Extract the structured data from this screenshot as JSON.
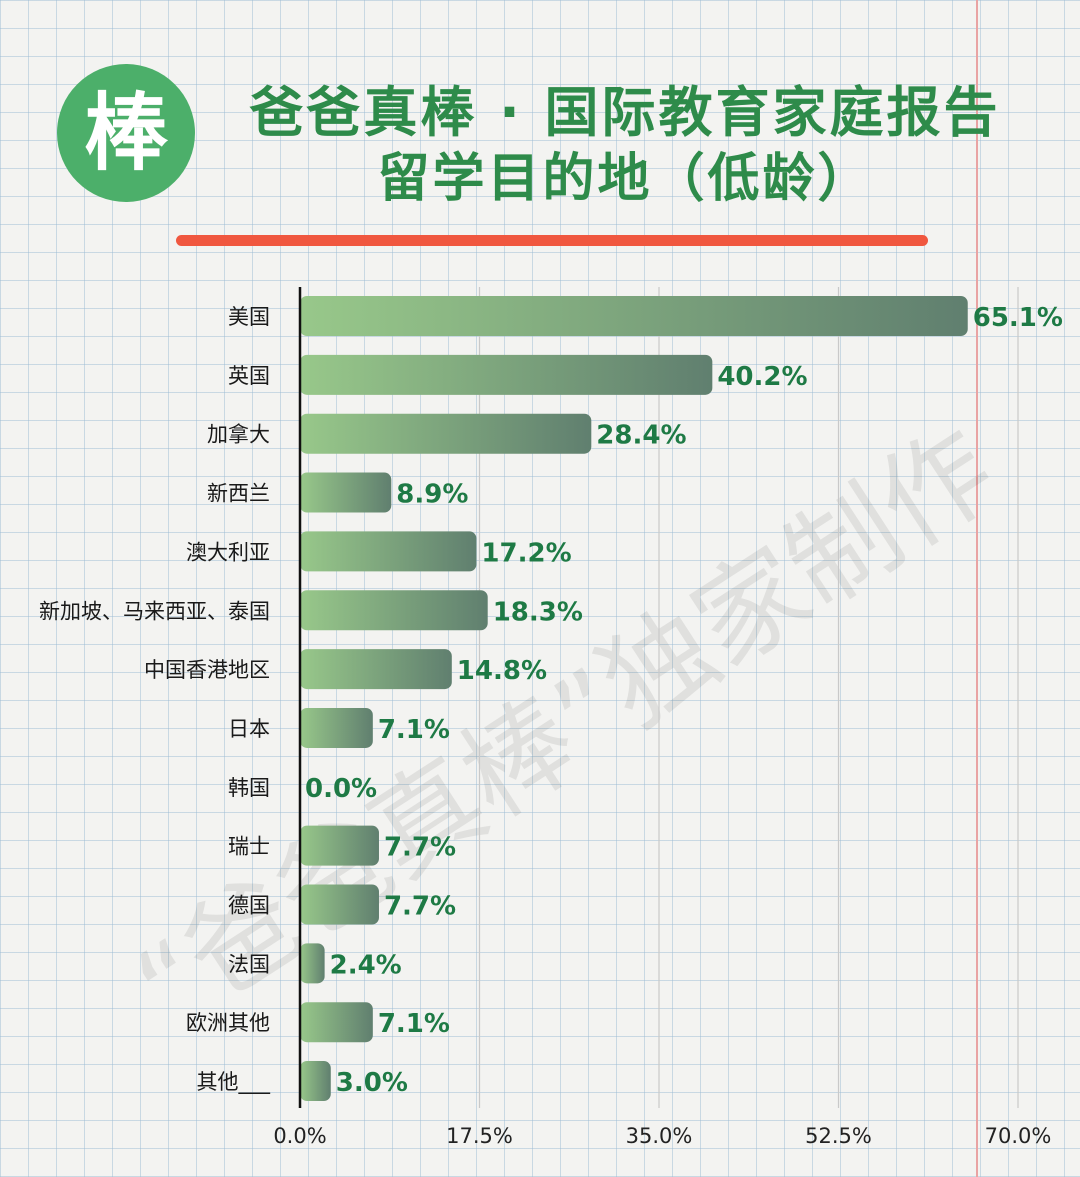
{
  "logo": {
    "char": "棒"
  },
  "header": {
    "title": "爸爸真棒 · 国际教育家庭报告",
    "subtitle": "留学目的地（低龄）"
  },
  "watermark": "“爸爸真棒”独家制作",
  "colors": {
    "title": "#2e8b4a",
    "logo": "#4caf6a",
    "divider": "#f0573f",
    "label_value": "#1e7a45",
    "bar_start": "#98c88a",
    "bar_end": "#607f6f",
    "grid": "#c9c9c9"
  },
  "chart_data": {
    "type": "bar",
    "orientation": "horizontal",
    "title": "留学目的地（低龄）",
    "categories": [
      "美国",
      "英国",
      "加拿大",
      "新西兰",
      "澳大利亚",
      "新加坡、马来西亚、泰国",
      "中国香港地区",
      "日本",
      "韩国",
      "瑞士",
      "德国",
      "法国",
      "欧洲其他",
      "其他___"
    ],
    "values": [
      65.1,
      40.2,
      28.4,
      8.9,
      17.2,
      18.3,
      14.8,
      7.1,
      0.0,
      7.7,
      7.7,
      2.4,
      7.1,
      3.0
    ],
    "value_labels": [
      "65.1%",
      "40.2%",
      "28.4%",
      "8.9%",
      "17.2%",
      "18.3%",
      "14.8%",
      "7.1%",
      "0.0%",
      "7.7%",
      "7.7%",
      "2.4%",
      "7.1%",
      "3.0%"
    ],
    "xlim": [
      0,
      70
    ],
    "x_ticks": [
      0,
      17.5,
      35,
      52.5,
      70
    ],
    "x_tick_labels": [
      "0.0%",
      "17.5%",
      "35.0%",
      "52.5%",
      "70.0%"
    ],
    "grid": "vertical",
    "legend": "none"
  }
}
